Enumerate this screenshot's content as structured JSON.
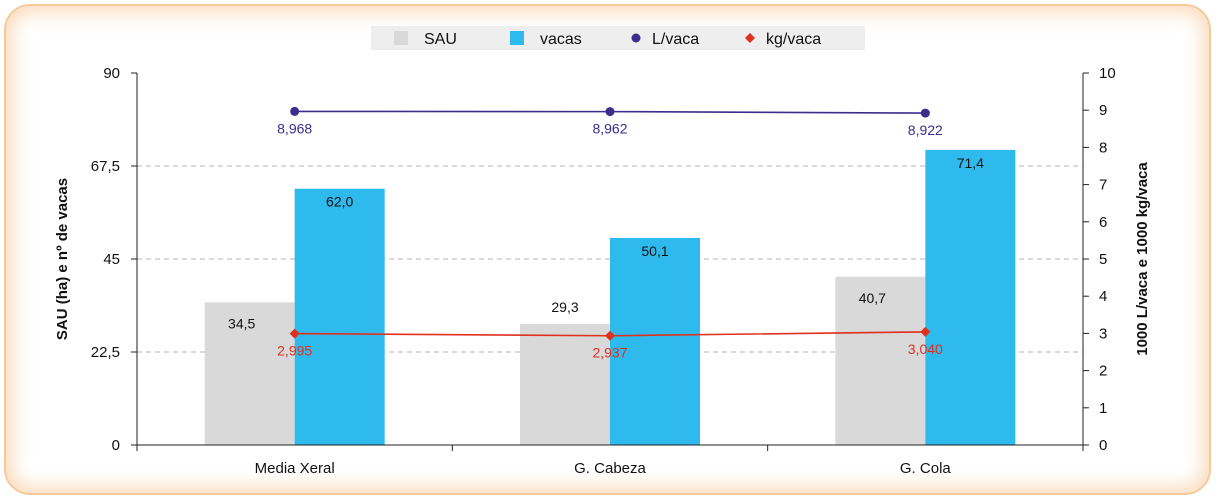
{
  "chart_data": {
    "type": "bar",
    "categories": [
      "Media Xeral",
      "G. Cabeza",
      "G. Cola"
    ],
    "series": [
      {
        "name": "SAU",
        "kind": "bar",
        "axis": "left",
        "values": [
          34.5,
          29.3,
          40.7
        ],
        "labels": [
          "34,5",
          "29,3",
          "40,7"
        ],
        "color": "#d9d9d9"
      },
      {
        "name": "vacas",
        "kind": "bar",
        "axis": "left",
        "values": [
          62.0,
          50.1,
          71.4
        ],
        "labels": [
          "62,0",
          "50,1",
          "71,4"
        ],
        "color": "#2fbaee"
      },
      {
        "name": "L/vaca",
        "kind": "line",
        "axis": "right",
        "values": [
          8.968,
          8.962,
          8.922
        ],
        "labels": [
          "8,968",
          "8,962",
          "8,922"
        ],
        "color": "#3a2d8c"
      },
      {
        "name": "kg/vaca",
        "kind": "line",
        "axis": "right",
        "values": [
          2.995,
          2.937,
          3.04
        ],
        "labels": [
          "2,995",
          "2,937",
          "3,040"
        ],
        "color": "#e0301e"
      }
    ],
    "ylabel": "SAU (ha) e nº de vacas",
    "y2label": "1000 L/vaca e 1000 kg/vaca",
    "ylim": [
      0,
      90
    ],
    "yticks": [
      "0",
      "22,5",
      "45",
      "67,5",
      "90"
    ],
    "y2lim": [
      0,
      10
    ],
    "y2ticks": [
      "0",
      "1",
      "2",
      "3",
      "4",
      "5",
      "6",
      "7",
      "8",
      "9",
      "10"
    ],
    "grid": "dashed horizontal",
    "legend_position": "top-center",
    "legend_bg": "#eeeeee"
  }
}
